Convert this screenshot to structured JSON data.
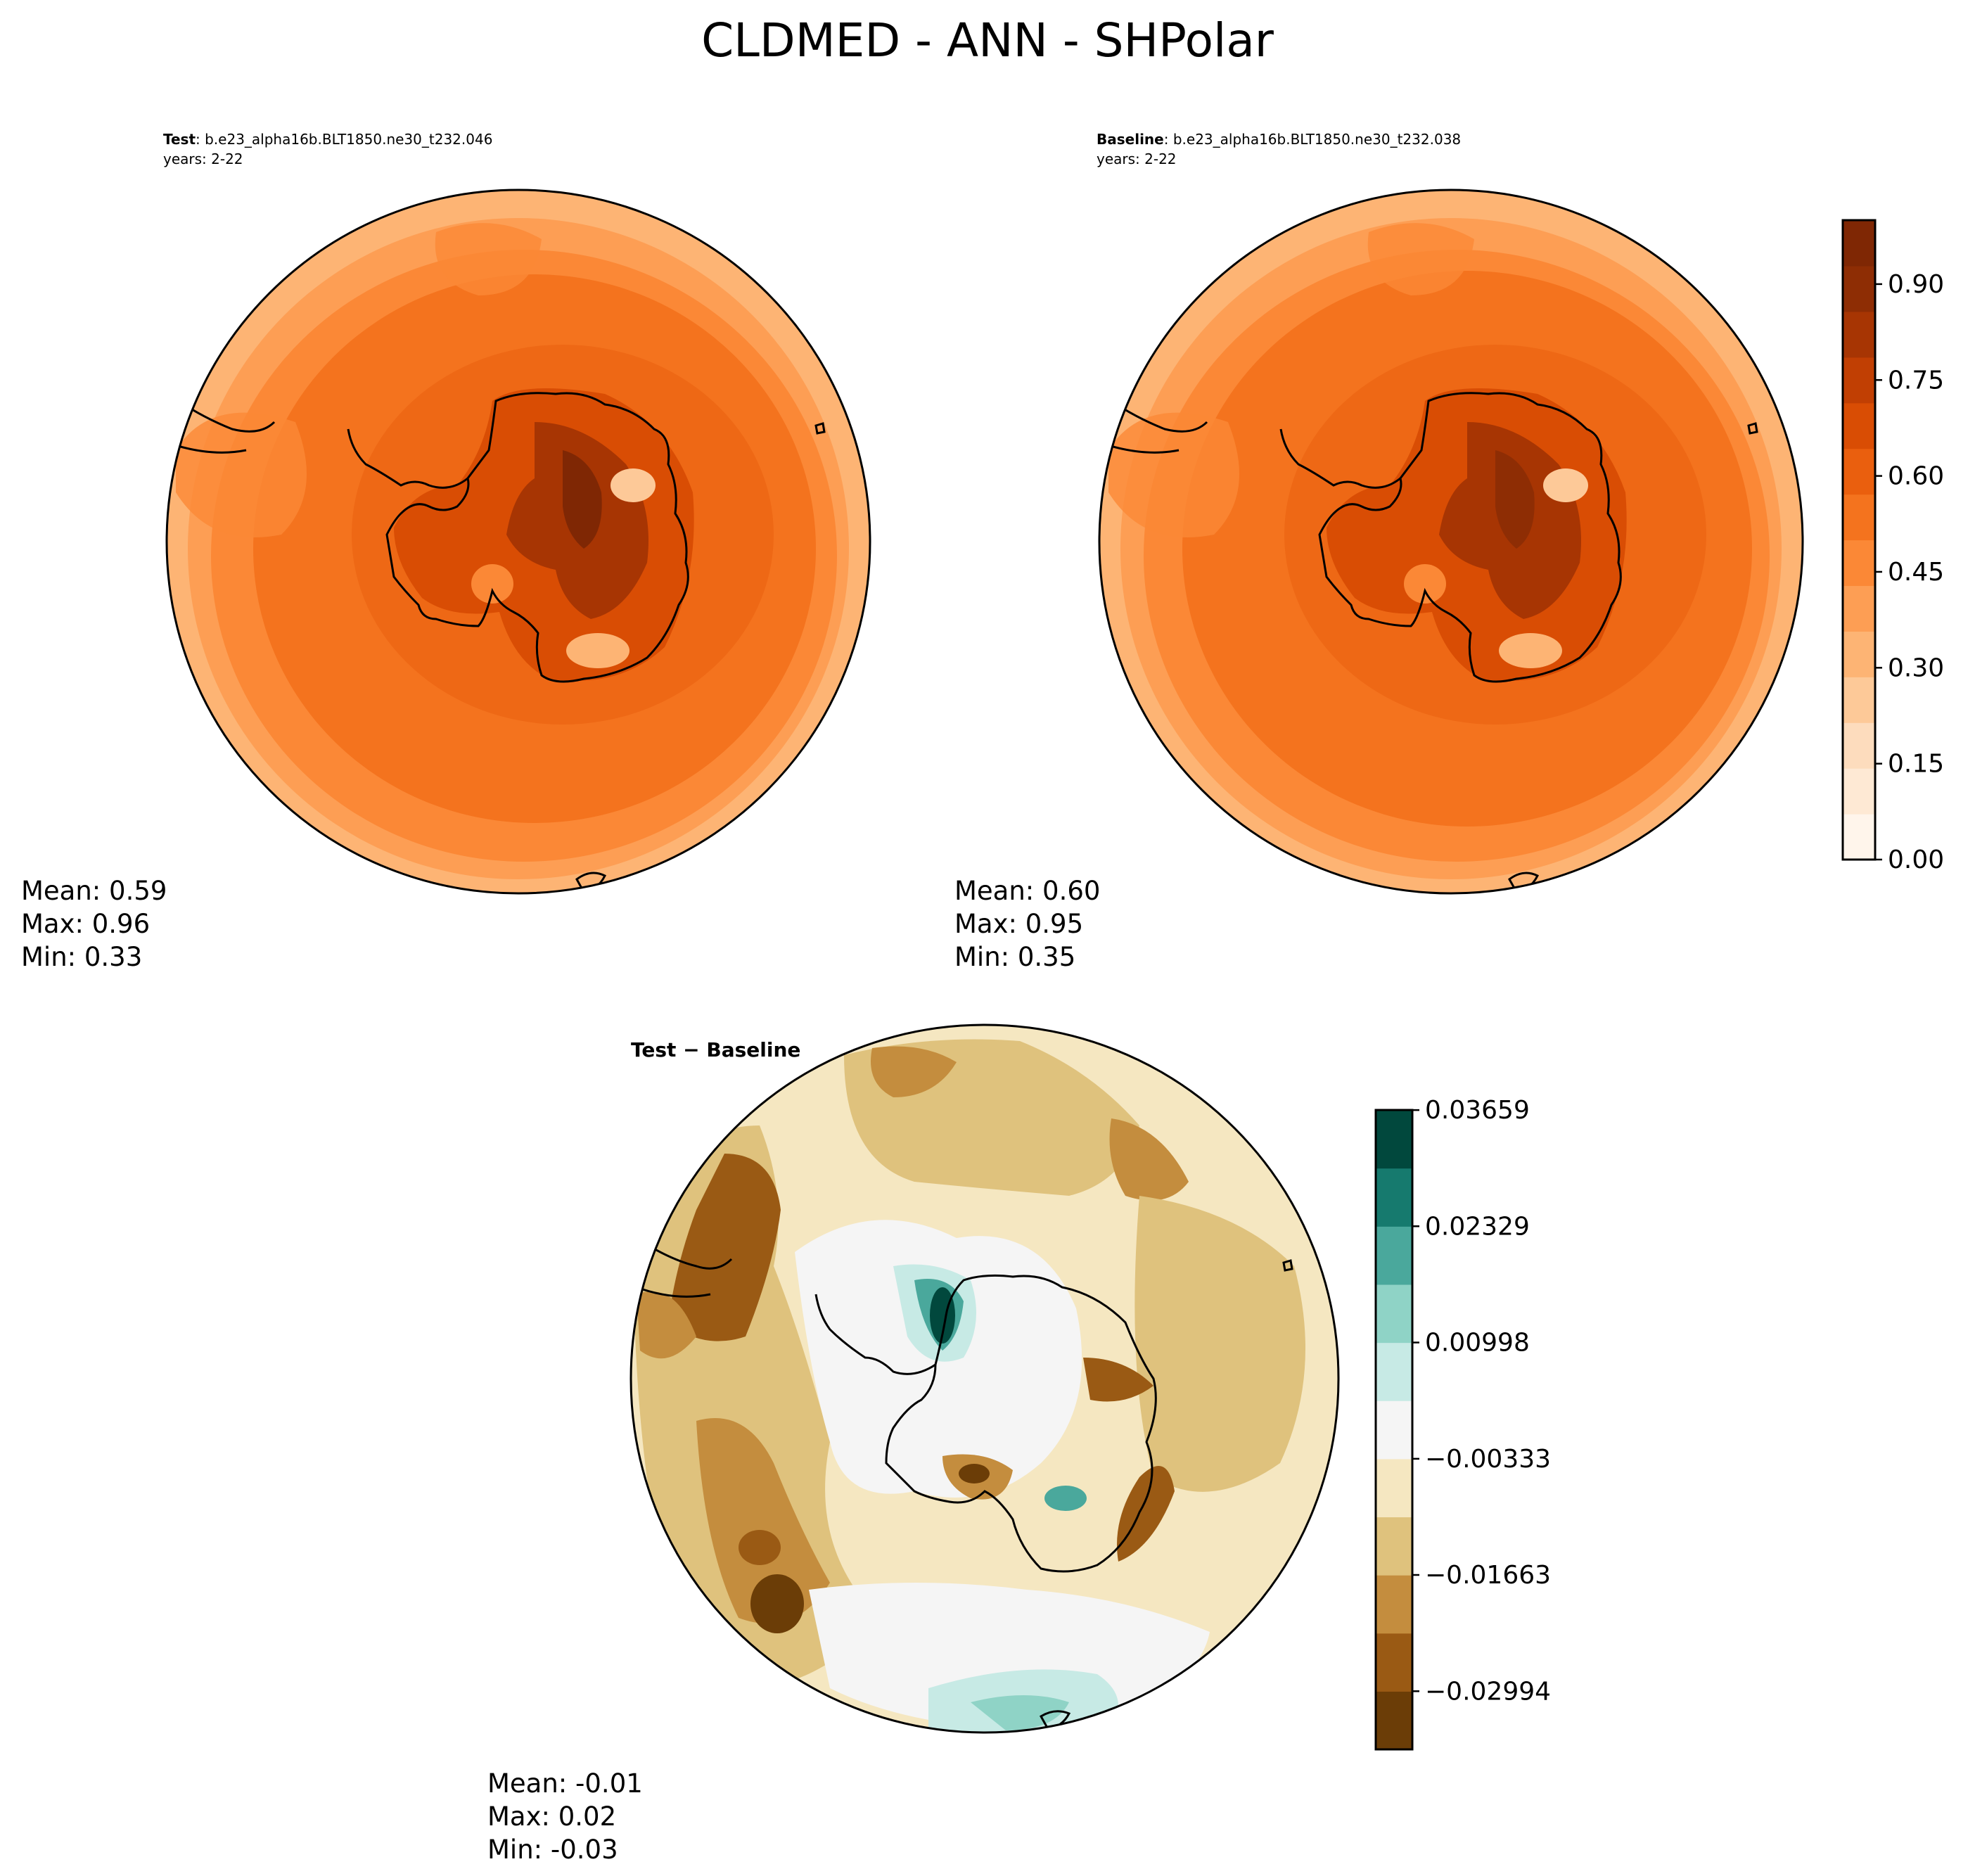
{
  "title": "CLDMED - ANN - SHPolar",
  "panels": [
    {
      "id": "test",
      "label_bold": "Test",
      "label_rest": ": b.e23_alpha16b.BLT1850.ne30_t232.046",
      "years": "years: 2-22",
      "stats": [
        "Mean:  0.59",
        "Max:  0.96",
        "Min:  0.33"
      ],
      "colormap": "oranges"
    },
    {
      "id": "baseline",
      "label_bold": "Baseline",
      "label_rest": ": b.e23_alpha16b.BLT1850.ne30_t232.038",
      "years": "years: 2-22",
      "stats": [
        "Mean:  0.60",
        "Max:  0.95",
        "Min:  0.35"
      ],
      "colormap": "oranges"
    },
    {
      "id": "diff",
      "label_bold": "Test − Baseline",
      "label_rest": "",
      "years": "",
      "stats": [
        "Mean: -0.01",
        "Max:  0.02",
        "Min: -0.03"
      ],
      "colormap": "brbg"
    }
  ],
  "colorbars": {
    "main": {
      "ticks": [
        "0.00",
        "0.15",
        "0.30",
        "0.45",
        "0.60",
        "0.75",
        "0.90"
      ],
      "tick_values": [
        0,
        0.15,
        0.3,
        0.45,
        0.6,
        0.75,
        0.9
      ],
      "range": [
        0,
        1
      ],
      "colors": [
        "#fff5eb",
        "#fee9d4",
        "#fddcbd",
        "#fdc998",
        "#fdb474",
        "#fd9e54",
        "#fb8836",
        "#f4731e",
        "#ea5f0e",
        "#d94d04",
        "#c13f03",
        "#a73503",
        "#8e2d04",
        "#7f2704"
      ]
    },
    "diff": {
      "ticks": [
        "0.03659",
        "0.02329",
        "0.00998",
        "−0.00333",
        "−0.01663",
        "−0.02994"
      ],
      "tick_values": [
        0.03659,
        0.02329,
        0.00998,
        -0.00333,
        -0.01663,
        -0.02994
      ],
      "range": [
        -0.0366,
        0.0366
      ],
      "colors": [
        "#6b3d07",
        "#9a5a14",
        "#c48d3e",
        "#dfc27d",
        "#f5e7c1",
        "#f5f5f5",
        "#c7eae5",
        "#8fd3c6",
        "#4aa89c",
        "#167a6e",
        "#01483d"
      ]
    }
  }
}
